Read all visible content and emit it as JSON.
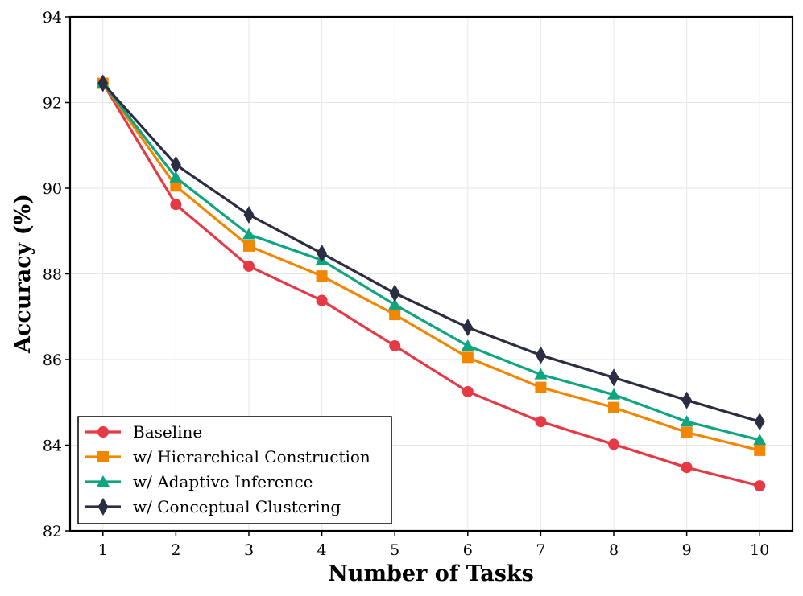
{
  "chart_data": {
    "type": "line",
    "title": "",
    "xlabel": "Number of Tasks",
    "ylabel": "Accuracy (%)",
    "x": [
      1,
      2,
      3,
      4,
      5,
      6,
      7,
      8,
      9,
      10
    ],
    "xlim": [
      0.55,
      10.45
    ],
    "ylim": [
      82,
      94
    ],
    "yticks": [
      82,
      84,
      86,
      88,
      90,
      92,
      94
    ],
    "grid": true,
    "legend_position": "bottom-left",
    "series": [
      {
        "name": "Baseline",
        "color": "#e63946",
        "marker": "circle",
        "values": [
          92.45,
          89.62,
          88.18,
          87.38,
          86.32,
          85.25,
          84.55,
          84.02,
          83.48,
          83.05
        ]
      },
      {
        "name": "w/ Hierarchical Construction",
        "color": "#f18701",
        "marker": "square",
        "values": [
          92.45,
          90.05,
          88.65,
          87.95,
          87.05,
          86.05,
          85.35,
          84.88,
          84.3,
          83.88
        ]
      },
      {
        "name": "w/ Adaptive Inference",
        "color": "#0ea581",
        "marker": "triangle",
        "values": [
          92.45,
          90.25,
          88.92,
          88.32,
          87.28,
          86.32,
          85.65,
          85.18,
          84.55,
          84.12
        ]
      },
      {
        "name": "w/ Conceptual Clustering",
        "color": "#2b2d42",
        "marker": "diamond",
        "values": [
          92.45,
          90.55,
          89.38,
          88.48,
          87.55,
          86.75,
          86.1,
          85.58,
          85.05,
          84.55
        ]
      }
    ]
  }
}
